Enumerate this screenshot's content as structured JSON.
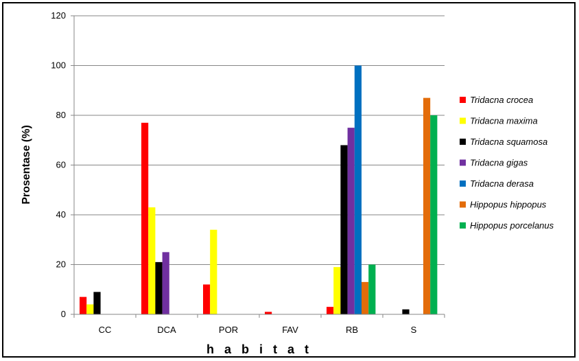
{
  "chart_data": {
    "type": "bar",
    "title": "",
    "xlabel": "h a b i t a t",
    "ylabel": "Prosentase (%)",
    "ylim": [
      0,
      120
    ],
    "yticks": [
      0,
      20,
      40,
      60,
      80,
      100,
      120
    ],
    "grid": true,
    "legend_position": "right",
    "categories": [
      "CC",
      "DCA",
      "POR",
      "FAV",
      "RB",
      "S"
    ],
    "series": [
      {
        "name": "Tridacna crocea",
        "color": "#ff0000",
        "values": [
          7,
          77,
          12,
          1,
          3,
          0
        ]
      },
      {
        "name": "Tridacna maxima",
        "color": "#ffff00",
        "values": [
          4,
          43,
          34,
          0,
          19,
          0
        ]
      },
      {
        "name": "Tridacna squamosa",
        "color": "#000000",
        "values": [
          9,
          21,
          0,
          0,
          68,
          2
        ]
      },
      {
        "name": "Tridacna gigas",
        "color": "#7030a0",
        "values": [
          0,
          25,
          0,
          0,
          75,
          0
        ]
      },
      {
        "name": "Tridacna derasa",
        "color": "#0070c0",
        "values": [
          0,
          0,
          0,
          0,
          100,
          0
        ]
      },
      {
        "name": "Hippopus hippopus",
        "color": "#e36c0a",
        "values": [
          0,
          0,
          0,
          0,
          13,
          87
        ]
      },
      {
        "name": "Hippopus porcelanus",
        "color": "#00b050",
        "values": [
          0,
          0,
          0,
          0,
          20,
          80
        ]
      }
    ]
  }
}
